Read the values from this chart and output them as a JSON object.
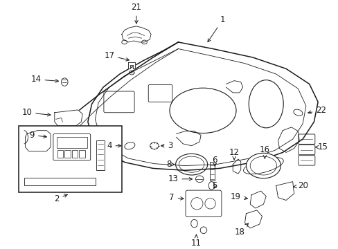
{
  "background_color": "#ffffff",
  "line_color": "#1a1a1a",
  "text_color": "#1a1a1a",
  "fig_width": 4.89,
  "fig_height": 3.6,
  "dpi": 100
}
